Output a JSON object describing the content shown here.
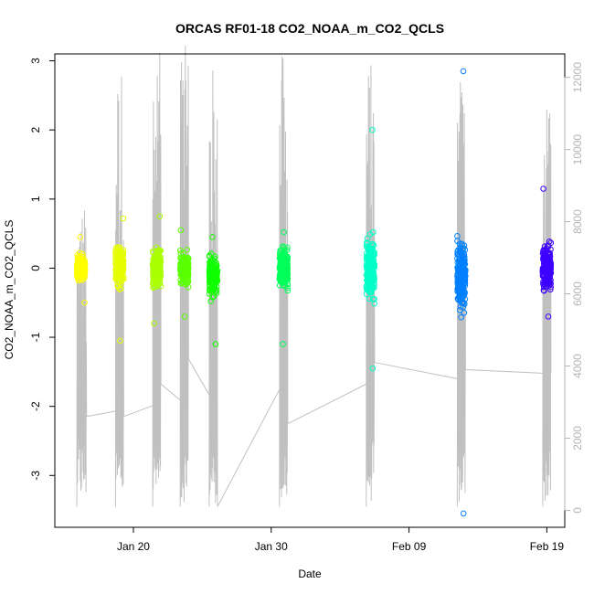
{
  "chart_data": {
    "type": "scatter",
    "title": "ORCAS RF01-18 CO2_NOAA_m_CO2_QCLS",
    "xlabel": "Date",
    "ylabel": "CO2_NOAA_m_CO2_QCLS",
    "x_ticks": [
      "Jan 20",
      "Jan 30",
      "Feb 09",
      "Feb 19"
    ],
    "x_tick_days": [
      20,
      30,
      40,
      50
    ],
    "xlim_days": [
      14.3,
      51.3
    ],
    "ylim": [
      -3.75,
      3.1
    ],
    "y_ticks": [
      "-3",
      "-2",
      "-1",
      "0",
      "1",
      "2",
      "3"
    ],
    "y2_ticks": [
      "0",
      "2000",
      "4000",
      "6000",
      "8000",
      "10000",
      "12000"
    ],
    "y2lim": [
      -470,
      12650
    ],
    "grid": false,
    "secondary_line_color": "#c0c0c0",
    "flights": [
      {
        "day": 16.2,
        "t0": 15.9,
        "t1": 16.6,
        "ymin": -0.5,
        "ymax": 0.45,
        "color": "#ffff00",
        "alt_max": 8700,
        "alt_end": 2600
      },
      {
        "day": 19.0,
        "t0": 18.7,
        "t1": 19.3,
        "ymin": -1.05,
        "ymax": 0.72,
        "color": "#e6ff00",
        "alt_max": 12400,
        "alt_end": 2600
      },
      {
        "day": 21.7,
        "t0": 21.4,
        "t1": 22.0,
        "ymin": -0.8,
        "ymax": 0.75,
        "color": "#aaff00",
        "alt_max": 12700,
        "alt_end": 3500
      },
      {
        "day": 23.7,
        "t0": 23.4,
        "t1": 24.0,
        "ymin": -0.7,
        "ymax": 0.55,
        "color": "#5aff00",
        "alt_max": 12900,
        "alt_end": 4200
      },
      {
        "day": 25.8,
        "t0": 25.5,
        "t1": 26.1,
        "ymin": -1.1,
        "ymax": 0.45,
        "color": "#11ff00",
        "alt_max": 12400,
        "alt_end": 100
      },
      {
        "day": 30.9,
        "t0": 30.6,
        "t1": 31.2,
        "ymin": -1.1,
        "ymax": 0.52,
        "color": "#00ff5a",
        "alt_max": 12700,
        "alt_end": 2400
      },
      {
        "day": 37.2,
        "t0": 36.9,
        "t1": 37.5,
        "ymin": -1.45,
        "ymax": 2.0,
        "color": "#00ffc8",
        "alt_max": 12500,
        "alt_end": 4100
      },
      {
        "day": 43.8,
        "t0": 43.5,
        "t1": 44.1,
        "ymin": -3.55,
        "ymax": 2.85,
        "color": "#0080ff",
        "alt_max": 12200,
        "alt_end": 3900
      },
      {
        "day": 50.0,
        "t0": 49.7,
        "t1": 50.3,
        "ymin": -0.7,
        "ymax": 1.15,
        "color": "#3c00ff",
        "alt_max": 12400,
        "alt_end": 3800
      }
    ]
  }
}
